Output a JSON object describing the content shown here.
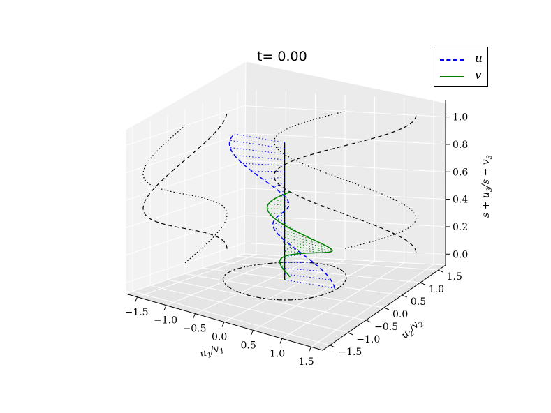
{
  "chart_data": {
    "type": "3d-line",
    "title": "t= 0.00",
    "xlabel": "u1/v1",
    "ylabel": "u2/v2",
    "zlabel": "s + u3/s + v3",
    "xlim": [
      -1.5,
      1.5
    ],
    "ylim": [
      -1.5,
      1.5
    ],
    "zlim": [
      0.0,
      1.0
    ],
    "xticks": [
      "−1.5",
      "−1.0",
      "−0.5",
      "0.0",
      "0.5",
      "1.0",
      "1.5"
    ],
    "yticks": [
      "−1.5",
      "−1.0",
      "−0.5",
      "0.0",
      "0.5",
      "1.0",
      "1.5"
    ],
    "zticks": [
      "0.0",
      "0.2",
      "0.4",
      "0.6",
      "0.8",
      "1.0"
    ],
    "legend_position": "top-right",
    "grid": true,
    "series": [
      {
        "name": "u",
        "style": "dashed",
        "color": "#0000ff"
      },
      {
        "name": "v",
        "style": "solid",
        "color": "#008000"
      }
    ]
  },
  "colors": {
    "u": "#0000ff",
    "v": "#008000",
    "guide": "#000000"
  },
  "legend": {
    "u_label": "u",
    "v_label": "v"
  }
}
